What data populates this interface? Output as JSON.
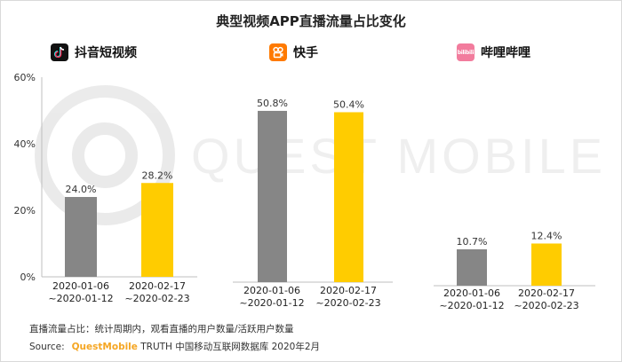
{
  "title": "典型视频APP直播流量占比变化",
  "watermark_text": "QUEST MOBILE",
  "colors": {
    "before": "#868686",
    "after": "#ffcc00",
    "axis": "#bfbfbf"
  },
  "apps": [
    {
      "name": "抖音短视频",
      "icon": "tiktok-icon",
      "icon_bg": "#111111"
    },
    {
      "name": "快手",
      "icon": "kuaishou-icon",
      "icon_bg": "#ff7a00"
    },
    {
      "name": "哔哩哔哩",
      "icon": "bilibili-icon",
      "icon_bg": "#f27c9d",
      "icon_text": "bilibili"
    }
  ],
  "y_axis_ticks": [
    "0%",
    "20%",
    "40%",
    "60%"
  ],
  "chart_data": [
    {
      "type": "bar",
      "title": "抖音短视频",
      "categories": [
        "2020-01-06\n~2020-01-12",
        "2020-02-17\n~2020-02-23"
      ],
      "values": [
        24.0,
        28.2
      ],
      "value_labels": [
        "24.0%",
        "28.2%"
      ],
      "ylim": [
        0,
        60
      ],
      "unit": "%"
    },
    {
      "type": "bar",
      "title": "快手",
      "categories": [
        "2020-01-06\n~2020-01-12",
        "2020-02-17\n~2020-02-23"
      ],
      "values": [
        50.8,
        50.4
      ],
      "value_labels": [
        "50.8%",
        "50.4%"
      ],
      "ylim": [
        0,
        60
      ],
      "unit": "%"
    },
    {
      "type": "bar",
      "title": "哔哩哔哩",
      "categories": [
        "2020-01-06\n~2020-01-12",
        "2020-02-17\n~2020-02-23"
      ],
      "values": [
        10.7,
        12.4
      ],
      "value_labels": [
        "10.7%",
        "12.4%"
      ],
      "ylim": [
        0,
        60
      ],
      "unit": "%"
    }
  ],
  "footnote": "直播流量占比：统计周期内，观看直播的用户数量/活跃用户数量",
  "source": {
    "label": "Source:",
    "brand": "QuestMobile",
    "text": "TRUTH 中国移动互联网数据库 2020年2月"
  }
}
